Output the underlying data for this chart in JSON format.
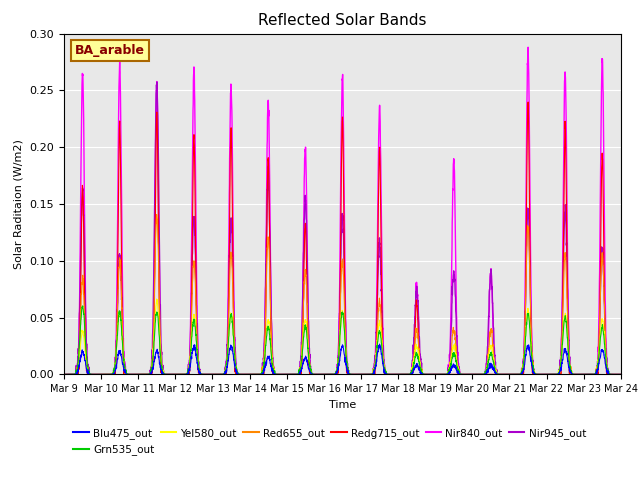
{
  "title": "Reflected Solar Bands",
  "xlabel": "Time",
  "ylabel": "Solar Raditaion (W/m2)",
  "annotation": "BA_arable",
  "ylim": [
    0.0,
    0.3
  ],
  "xtick_labels": [
    "Mar 9",
    "Mar 10",
    "Mar 11",
    "Mar 12",
    "Mar 13",
    "Mar 14",
    "Mar 15",
    "Mar 16",
    "Mar 17",
    "Mar 18",
    "Mar 19",
    "Mar 20",
    "Mar 21",
    "Mar 22",
    "Mar 23",
    "Mar 24"
  ],
  "series": {
    "Blu475_out": {
      "color": "#0000ff",
      "lw": 0.8
    },
    "Grn535_out": {
      "color": "#00cc00",
      "lw": 0.8
    },
    "Yel580_out": {
      "color": "#ffff00",
      "lw": 0.8
    },
    "Red655_out": {
      "color": "#ff8800",
      "lw": 0.8
    },
    "Redg715_out": {
      "color": "#ff0000",
      "lw": 0.8
    },
    "Nir840_out": {
      "color": "#ff00ff",
      "lw": 1.0
    },
    "Nir945_out": {
      "color": "#aa00cc",
      "lw": 1.0
    }
  },
  "background_color": "#e8e8e8",
  "fig_background": "#ffffff",
  "annotation_bg": "#ffff99",
  "annotation_border": "#aa6600",
  "annotation_text_color": "#880000",
  "nir840_peaks": [
    0.267,
    0.272,
    0.255,
    0.265,
    0.255,
    0.24,
    0.2,
    0.265,
    0.235,
    0.075,
    0.188,
    0.09,
    0.285,
    0.267,
    0.275,
    0.0
  ],
  "nir945_peaks": [
    0.16,
    0.105,
    0.255,
    0.138,
    0.135,
    0.175,
    0.155,
    0.14,
    0.115,
    0.075,
    0.09,
    0.09,
    0.145,
    0.145,
    0.11,
    0.0
  ],
  "redg715_peaks": [
    0.165,
    0.22,
    0.23,
    0.21,
    0.215,
    0.19,
    0.135,
    0.225,
    0.2,
    0.065,
    0.0,
    0.0,
    0.24,
    0.22,
    0.195,
    0.0
  ],
  "red655_peaks": [
    0.083,
    0.1,
    0.14,
    0.1,
    0.105,
    0.12,
    0.09,
    0.1,
    0.065,
    0.04,
    0.04,
    0.04,
    0.13,
    0.105,
    0.105,
    0.0
  ],
  "yel580_peaks": [
    0.038,
    0.055,
    0.065,
    0.052,
    0.053,
    0.048,
    0.048,
    0.055,
    0.045,
    0.025,
    0.025,
    0.025,
    0.057,
    0.053,
    0.048,
    0.0
  ],
  "grn535_peaks": [
    0.06,
    0.055,
    0.055,
    0.048,
    0.053,
    0.042,
    0.042,
    0.055,
    0.038,
    0.018,
    0.018,
    0.018,
    0.053,
    0.05,
    0.042,
    0.0
  ],
  "blu475_peaks": [
    0.02,
    0.02,
    0.02,
    0.025,
    0.025,
    0.015,
    0.015,
    0.025,
    0.025,
    0.008,
    0.008,
    0.008,
    0.025,
    0.022,
    0.022,
    0.0
  ]
}
